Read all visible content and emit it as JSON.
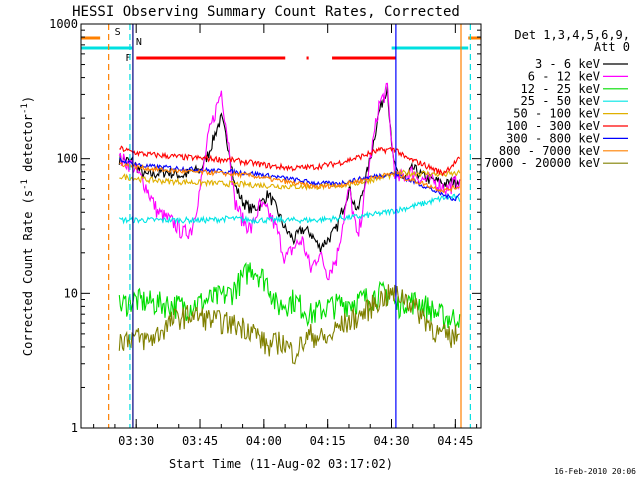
{
  "chart_data": {
    "type": "line",
    "title": "HESSI Observing Summary Count Rates, Corrected",
    "xlabel": "Start Time (11-Aug-02 03:17:02)",
    "ylabel_main": "Corrected Count Rate (s",
    "ylabel_sup1": "-1",
    "ylabel_mid": " detector",
    "ylabel_sup2": "-1",
    "ylabel_end": ")",
    "footer": "16-Feb-2010 20:06",
    "x_unit": "minutes since 03:17:02",
    "xlim": [
      0,
      94
    ],
    "ylim": [
      1,
      1000
    ],
    "y_scale": "log",
    "x_ticks": [
      {
        "x": 12.97,
        "label": "03:30"
      },
      {
        "x": 27.97,
        "label": "03:45"
      },
      {
        "x": 42.97,
        "label": "04:00"
      },
      {
        "x": 57.97,
        "label": "04:15"
      },
      {
        "x": 72.97,
        "label": "04:30"
      },
      {
        "x": 87.97,
        "label": "04:45"
      }
    ],
    "y_ticks": [
      {
        "y": 1,
        "label": "1"
      },
      {
        "y": 10,
        "label": "10"
      },
      {
        "y": 100,
        "label": "100"
      },
      {
        "y": 1000,
        "label": "1000"
      }
    ],
    "legend": {
      "header1": "Det 1,3,4,5,6,9,",
      "header2": "Att 0",
      "placement": "right"
    },
    "flags": [
      {
        "label": "S",
        "color": "#ff8000",
        "segments": [
          [
            0,
            4.5
          ],
          [
            91,
            94
          ]
        ]
      },
      {
        "label": "N",
        "color": "#00e0e0",
        "segments": [
          [
            0,
            12
          ],
          [
            73,
            91
          ]
        ]
      },
      {
        "label": "F",
        "color": "#ff0000",
        "segments": [
          [
            13,
            48
          ],
          [
            53,
            53.5
          ],
          [
            59,
            74
          ]
        ]
      }
    ],
    "vlines": [
      {
        "x": 6.5,
        "color": "#ff8000",
        "dashed": true
      },
      {
        "x": 11.5,
        "color": "#00e0e0",
        "dashed": true
      },
      {
        "x": 91.5,
        "color": "#00e0e0",
        "dashed": true
      },
      {
        "x": 12.2,
        "color": "#000080",
        "dashed": false
      },
      {
        "x": 74,
        "color": "#0000ff",
        "dashed": false
      },
      {
        "x": 89.3,
        "color": "#ff8000",
        "dashed": false
      }
    ],
    "series": [
      {
        "name": "3 - 6 keV",
        "color": "#000000",
        "x": [
          9,
          12,
          15,
          20,
          24,
          26,
          28,
          30,
          32,
          33,
          35,
          36,
          38,
          40,
          42,
          44,
          46,
          48,
          50,
          52,
          54,
          56,
          58,
          60,
          63,
          65,
          68,
          70,
          72,
          73,
          74,
          76,
          78,
          80,
          82,
          86,
          89
        ],
        "y": [
          100,
          95,
          75,
          80,
          75,
          80,
          82,
          110,
          170,
          200,
          110,
          65,
          48,
          42,
          45,
          55,
          42,
          30,
          25,
          30,
          28,
          22,
          25,
          30,
          60,
          40,
          100,
          220,
          350,
          120,
          80,
          70,
          85,
          75,
          70,
          65,
          70
        ]
      },
      {
        "name": "6 - 12 keV",
        "color": "#ff00ff",
        "x": [
          9,
          12,
          15,
          18,
          22,
          24,
          26,
          28,
          30,
          32,
          33,
          35,
          36,
          38,
          40,
          42,
          44,
          46,
          48,
          50,
          52,
          54,
          56,
          58,
          60,
          63,
          65,
          68,
          70,
          72,
          73,
          74,
          76,
          78,
          80,
          82,
          86,
          89
        ],
        "y": [
          100,
          90,
          65,
          40,
          33,
          28,
          30,
          60,
          150,
          250,
          320,
          110,
          50,
          35,
          30,
          45,
          40,
          30,
          18,
          22,
          25,
          15,
          20,
          14,
          18,
          60,
          25,
          100,
          250,
          330,
          130,
          70,
          75,
          80,
          70,
          70,
          60,
          70
        ]
      },
      {
        "name": "12 - 25 keV",
        "color": "#00dd00",
        "x": [
          9,
          12,
          18,
          25,
          30,
          35,
          38,
          40,
          44,
          46,
          50,
          54,
          58,
          62,
          66,
          70,
          73,
          74,
          76,
          80,
          84,
          87,
          89
        ],
        "y": [
          8,
          9,
          8.5,
          8,
          9,
          10,
          13,
          16,
          12,
          8,
          9,
          7,
          8,
          8.5,
          9,
          10,
          10,
          8,
          9,
          8.5,
          7,
          6.5,
          7
        ]
      },
      {
        "name": "25 - 50 keV",
        "color": "#00e5e5",
        "x": [
          9,
          15,
          20,
          25,
          30,
          35,
          40,
          45,
          50,
          55,
          60,
          65,
          70,
          75,
          80,
          85,
          88,
          89
        ],
        "y": [
          35,
          35,
          35,
          35,
          35,
          36,
          35,
          35,
          35,
          35,
          36,
          37,
          39,
          42,
          46,
          51,
          52,
          48
        ]
      },
      {
        "name": "50 - 100 keV",
        "color": "#e0b000",
        "x": [
          9,
          15,
          20,
          25,
          30,
          35,
          40,
          45,
          50,
          55,
          60,
          65,
          70,
          75,
          80,
          85,
          89
        ],
        "y": [
          74,
          70,
          68,
          67,
          66,
          65,
          64,
          63,
          62,
          62,
          63,
          66,
          72,
          78,
          78,
          76,
          78
        ]
      },
      {
        "name": "100 - 300 keV",
        "color": "#ff0000",
        "x": [
          9,
          12,
          15,
          20,
          25,
          30,
          35,
          40,
          45,
          50,
          55,
          60,
          65,
          70,
          74,
          76,
          80,
          85,
          89
        ],
        "y": [
          120,
          112,
          108,
          105,
          102,
          100,
          98,
          93,
          88,
          85,
          87,
          92,
          102,
          115,
          118,
          102,
          92,
          78,
          100
        ]
      },
      {
        "name": "300 - 800 keV",
        "color": "#0000ff",
        "x": [
          9,
          12,
          15,
          20,
          25,
          30,
          35,
          40,
          45,
          50,
          55,
          60,
          65,
          70,
          74,
          76,
          80,
          85,
          88,
          89
        ],
        "y": [
          98,
          92,
          88,
          86,
          84,
          82,
          80,
          78,
          74,
          70,
          66,
          65,
          70,
          75,
          78,
          72,
          64,
          54,
          50,
          55
        ]
      },
      {
        "name": "800 - 7000 keV",
        "color": "#ff8000",
        "x": [
          9,
          12,
          15,
          20,
          25,
          30,
          35,
          40,
          45,
          50,
          55,
          60,
          65,
          70,
          74,
          76,
          80,
          85,
          89
        ],
        "y": [
          92,
          88,
          85,
          82,
          80,
          79,
          77,
          75,
          70,
          66,
          62,
          63,
          68,
          74,
          78,
          72,
          66,
          58,
          62
        ]
      },
      {
        "name": "7000 - 20000 keV",
        "color": "#808000",
        "x": [
          9,
          12,
          16,
          18,
          22,
          26,
          30,
          35,
          40,
          44,
          47,
          50,
          54,
          58,
          60,
          62,
          66,
          70,
          73,
          76,
          80,
          84,
          87,
          89
        ],
        "y": [
          4.5,
          4.8,
          4.5,
          5,
          6.5,
          7,
          6.5,
          6,
          5.5,
          4,
          4.5,
          3.6,
          5,
          4.5,
          5.5,
          6,
          7,
          9,
          10,
          9.5,
          7,
          5,
          4.8,
          5
        ]
      }
    ]
  }
}
